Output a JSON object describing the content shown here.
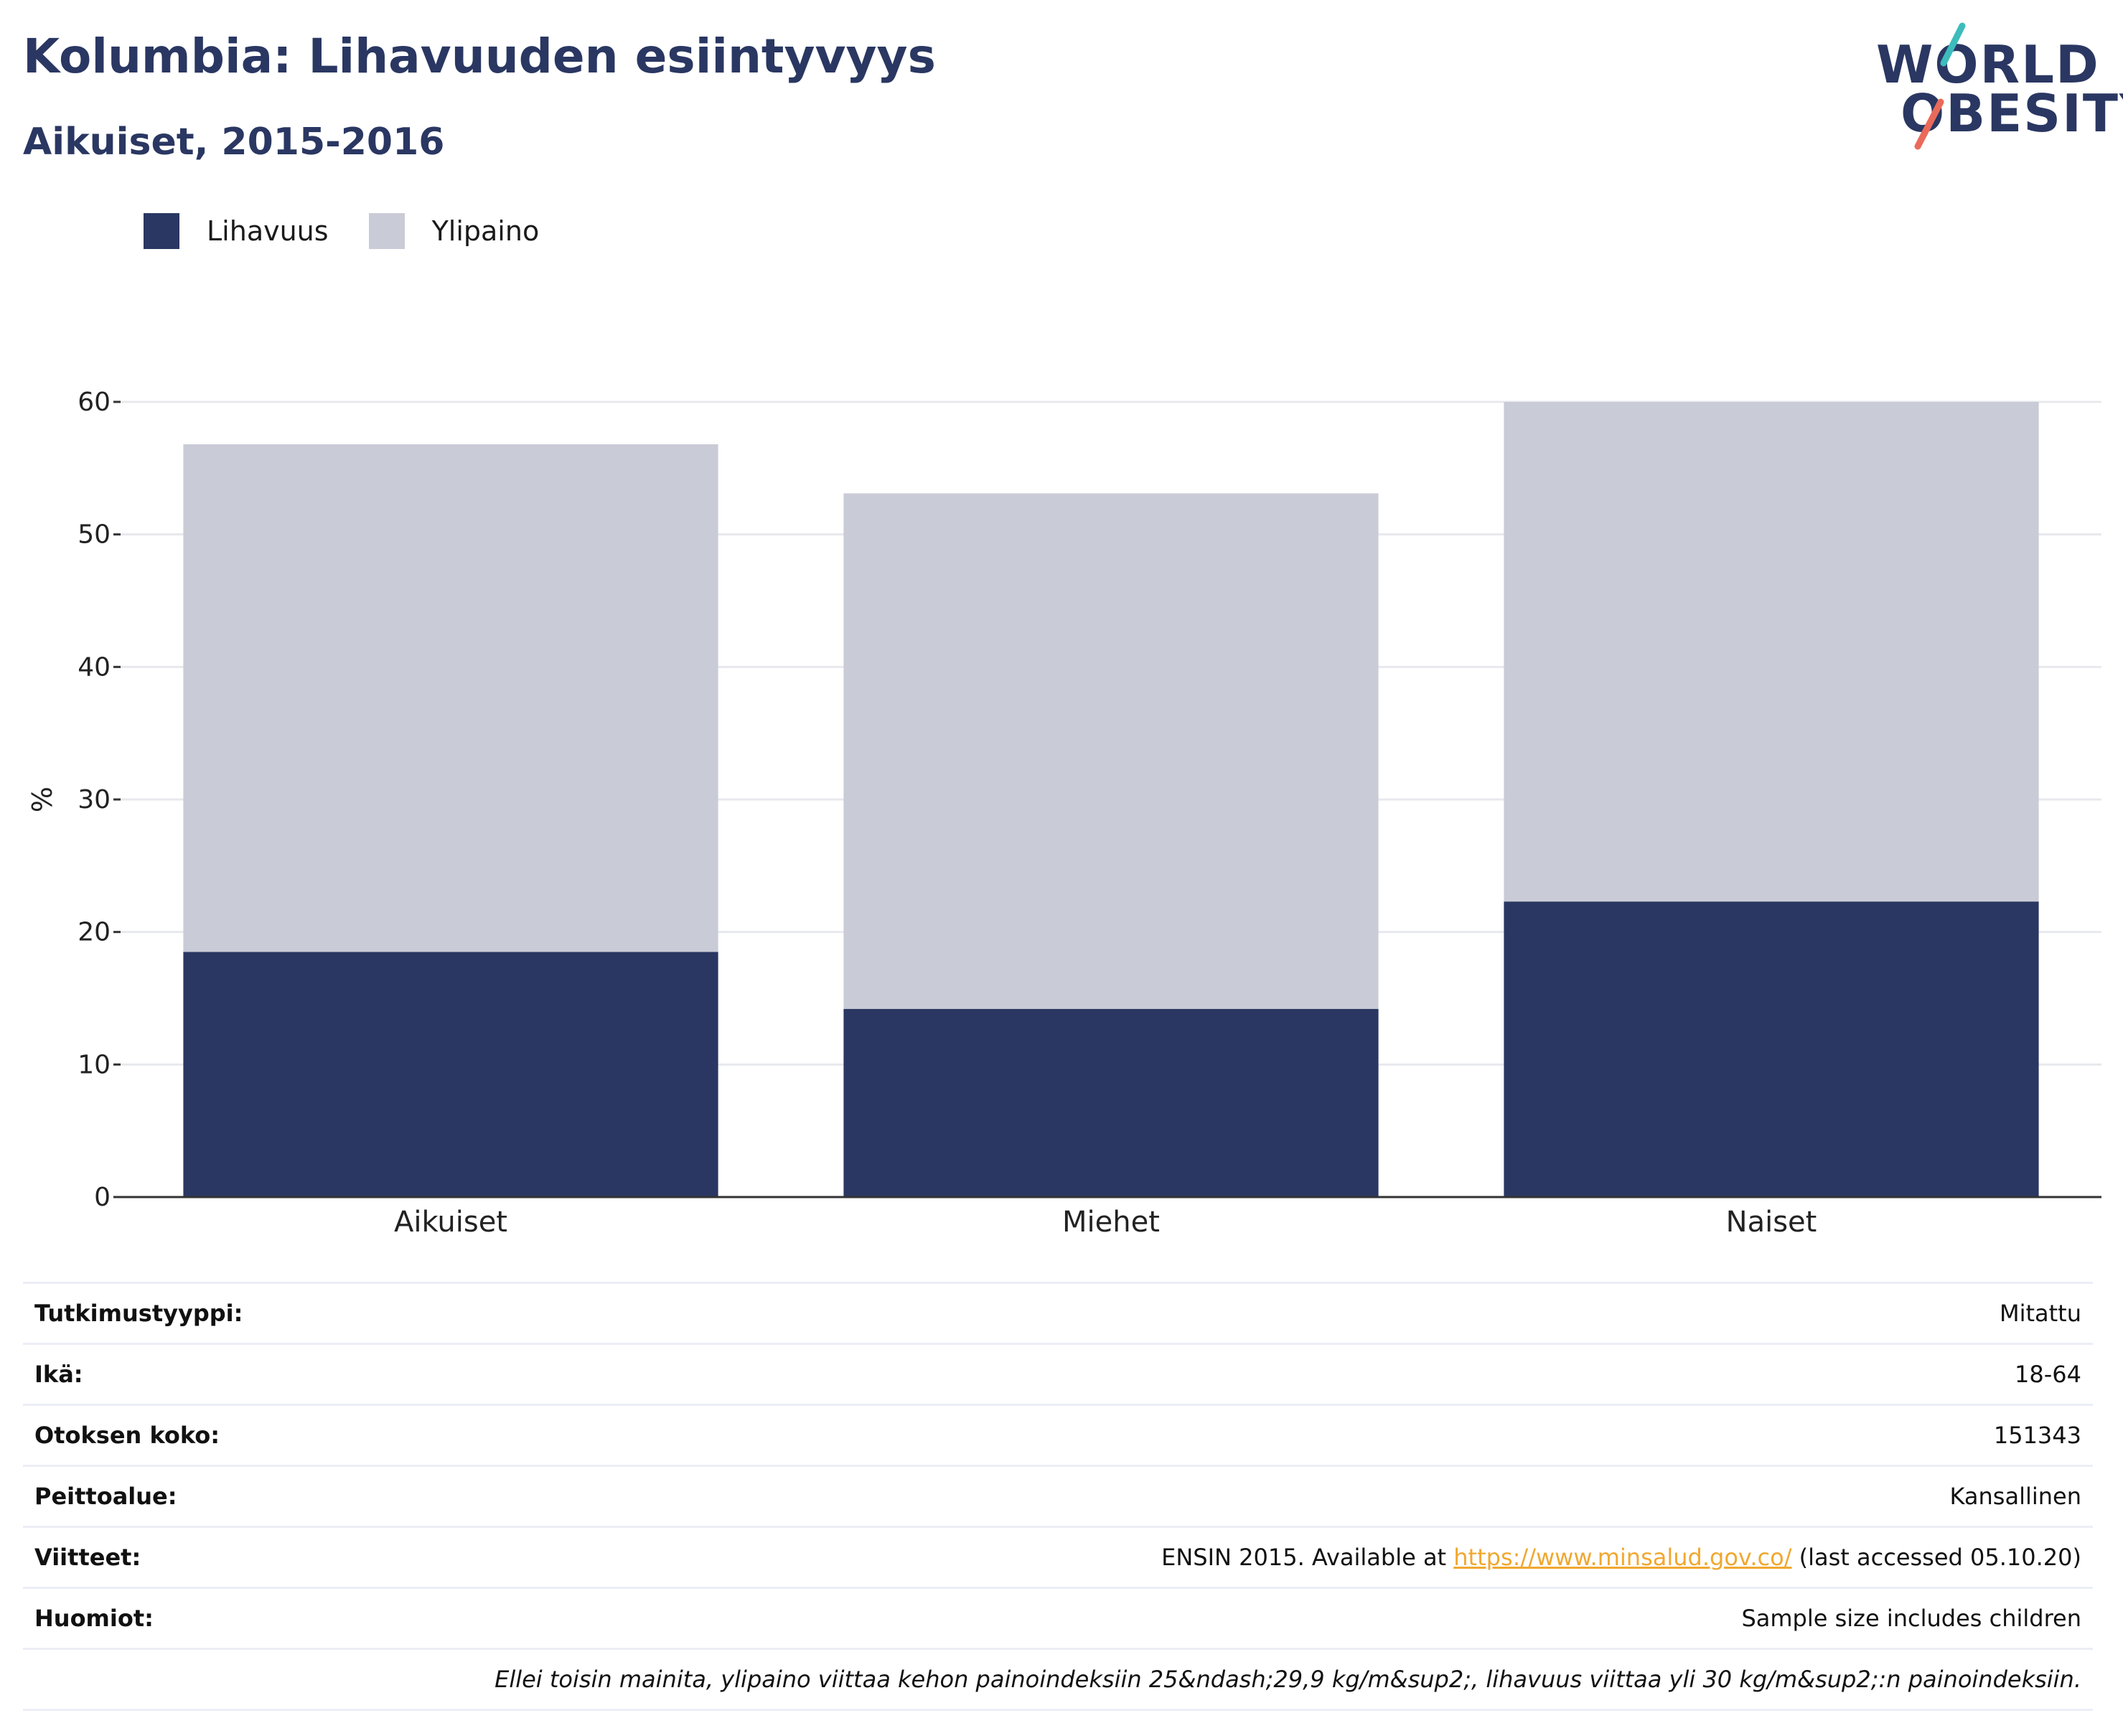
{
  "title": "Kolumbia: Lihavuuden esiintyvyys",
  "subtitle": "Aikuiset, 2015-2016",
  "logo": {
    "line1": "WORLD",
    "line2": "OBESITY",
    "colors": {
      "teal": "#3cbcbc",
      "coral": "#ea6a5a"
    }
  },
  "colors": {
    "obesity": "#2a3762",
    "overweight": "#c9cbd7",
    "grid": "#e8e9ee",
    "axis": "#333333"
  },
  "legend": [
    {
      "label": "Lihavuus",
      "color": "#2a3762"
    },
    {
      "label": "Ylipaino",
      "color": "#c9cbd7"
    }
  ],
  "chart_data": {
    "type": "bar",
    "stacked": true,
    "categories": [
      "Aikuiset",
      "Miehet",
      "Naiset"
    ],
    "series": [
      {
        "name": "Lihavuus",
        "values": [
          18.5,
          14.2,
          22.3
        ]
      },
      {
        "name": "Ylipaino",
        "values": [
          38.3,
          38.9,
          37.7
        ]
      }
    ],
    "ylabel": "%",
    "ylim": [
      0,
      60
    ],
    "yticks": [
      0,
      10,
      20,
      30,
      40,
      50,
      60
    ],
    "grid": true
  },
  "meta": [
    {
      "label": "Tutkimustyyppi:",
      "value": "Mitattu"
    },
    {
      "label": "Ikä:",
      "value": "18-64"
    },
    {
      "label": "Otoksen koko:",
      "value": "151343"
    },
    {
      "label": "Peittoalue:",
      "value": "Kansallinen"
    },
    {
      "label": "Viitteet:",
      "value_prefix": "ENSIN 2015. Available at ",
      "link": "https://www.minsalud.gov.co/",
      "value_suffix": " (last accessed 05.10.20)"
    },
    {
      "label": "Huomiot:",
      "value": "Sample size includes children"
    }
  ],
  "note": "Ellei toisin mainita, ylipaino viittaa kehon painoindeksiin 25&ndash;29,9 kg/m&sup2;, lihavuus viittaa yli 30 kg/m&sup2;:n painoindeksiin."
}
